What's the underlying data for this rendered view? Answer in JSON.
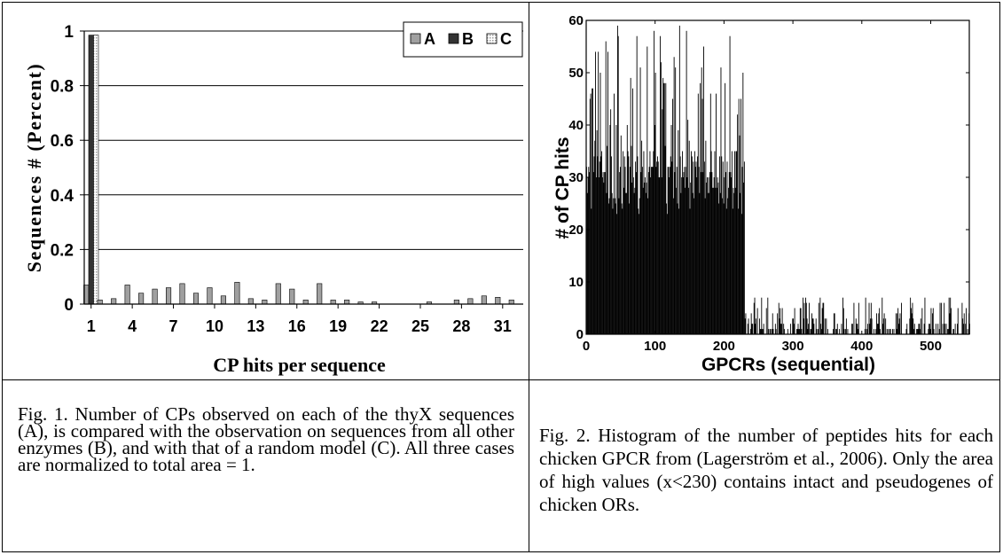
{
  "chart_data": [
    {
      "type": "bar",
      "xlabel": "CP hits per sequence",
      "ylabel": "Sequences # (Percent)",
      "ylim": [
        0,
        1
      ],
      "yticks": [
        "0",
        "0.2",
        "0.4",
        "0.6",
        "0.8",
        "1"
      ],
      "categories": [
        1,
        2,
        3,
        4,
        5,
        6,
        7,
        8,
        9,
        10,
        11,
        12,
        13,
        14,
        15,
        16,
        17,
        18,
        19,
        20,
        21,
        22,
        23,
        24,
        25,
        26,
        27,
        28,
        29,
        30,
        31,
        32
      ],
      "xtick_labels": [
        "1",
        "4",
        "7",
        "10",
        "13",
        "16",
        "19",
        "22",
        "25",
        "28",
        "31"
      ],
      "grid": true,
      "legend_position": "top-right",
      "series": [
        {
          "name": "A",
          "color": "#a0a0a0",
          "values": [
            0.07,
            0.015,
            0.02,
            0.07,
            0.04,
            0.055,
            0.06,
            0.075,
            0.04,
            0.06,
            0.03,
            0.08,
            0.02,
            0.015,
            0.075,
            0.055,
            0.015,
            0.075,
            0.015,
            0.015,
            0.008,
            0.008,
            0,
            0,
            0,
            0.008,
            0,
            0.015,
            0.02,
            0.03,
            0.025,
            0.015
          ]
        },
        {
          "name": "B",
          "color": "#333333",
          "values": [
            0.985,
            0,
            0,
            0,
            0,
            0,
            0,
            0,
            0,
            0,
            0,
            0,
            0,
            0,
            0,
            0,
            0,
            0,
            0,
            0,
            0,
            0,
            0,
            0,
            0,
            0,
            0,
            0,
            0,
            0,
            0,
            0
          ]
        },
        {
          "name": "C",
          "color": "#dddddd",
          "pattern": "dotted",
          "values": [
            0.985,
            0,
            0,
            0,
            0,
            0,
            0,
            0,
            0,
            0,
            0,
            0,
            0,
            0,
            0,
            0,
            0,
            0,
            0,
            0,
            0,
            0,
            0,
            0,
            0,
            0,
            0,
            0,
            0,
            0,
            0,
            0
          ]
        }
      ]
    },
    {
      "type": "bar",
      "xlabel": "GPCRs (sequential)",
      "ylabel": "# of CP hits",
      "xlim": [
        0,
        556
      ],
      "ylim": [
        0,
        60
      ],
      "xticks": [
        0,
        100,
        200,
        300,
        400,
        500
      ],
      "yticks": [
        0,
        10,
        20,
        30,
        40,
        50,
        60
      ],
      "color": "#000000",
      "description_high_region_cutoff": 230,
      "bin_width": 1,
      "segments": [
        {
          "x_start": 0,
          "x_end": 229,
          "min": 12,
          "max": 59,
          "typical": 28
        },
        {
          "x_start": 230,
          "x_end": 556,
          "min": 0,
          "max": 7,
          "typical": 2
        }
      ],
      "peaks": [
        [
          0,
          32
        ],
        [
          5,
          45
        ],
        [
          13,
          54
        ],
        [
          17,
          54
        ],
        [
          45,
          59
        ],
        [
          78,
          51
        ],
        [
          98,
          58
        ],
        [
          107,
          57
        ],
        [
          125,
          45
        ],
        [
          135,
          59
        ],
        [
          145,
          58
        ],
        [
          170,
          55
        ],
        [
          180,
          46
        ],
        [
          198,
          33
        ],
        [
          224,
          45
        ]
      ]
    }
  ],
  "captions": {
    "fig1": "Fig. 1. Number of CPs observed on each of the thyX sequences (A), is compared with the observation on sequences from all other enzymes (B), and with that of a random model (C). All three cases are normalized to total area = 1.",
    "fig2": "Fig. 2. Histogram of the number of peptides hits for each chicken GPCR from (Lagerström et al., 2006). Only the area of high values (x<230) contains intact and pseudogenes of chicken ORs."
  }
}
